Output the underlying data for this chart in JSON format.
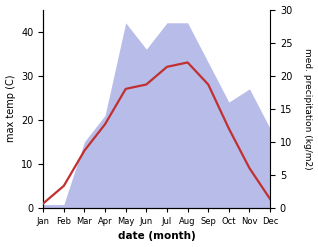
{
  "months": [
    "Jan",
    "Feb",
    "Mar",
    "Apr",
    "May",
    "Jun",
    "Jul",
    "Aug",
    "Sep",
    "Oct",
    "Nov",
    "Dec"
  ],
  "temp": [
    1,
    5,
    13,
    19,
    27,
    28,
    32,
    33,
    28,
    18,
    9,
    2
  ],
  "precip": [
    0.5,
    0.5,
    10,
    14,
    28,
    24,
    28,
    28,
    22,
    16,
    18,
    12
  ],
  "temp_color": "#c03030",
  "precip_fill_color": "#b8bce8",
  "temp_ylim": [
    0,
    45
  ],
  "precip_ylim": [
    0,
    30
  ],
  "xlabel": "date (month)",
  "ylabel_left": "max temp (C)",
  "ylabel_right": "med. precipitation (kg/m2)",
  "bg_color": "#ffffff",
  "plot_bg_color": "#ffffff",
  "left_yticks": [
    0,
    10,
    20,
    30,
    40
  ],
  "right_yticks": [
    0,
    5,
    10,
    15,
    20,
    25,
    30
  ]
}
